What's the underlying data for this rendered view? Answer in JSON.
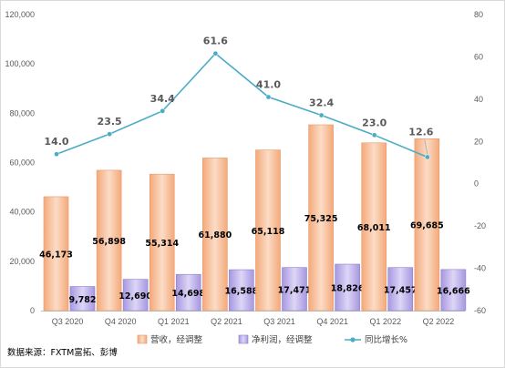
{
  "chart_data": {
    "type": "bar",
    "categories": [
      "Q3 2020",
      "Q4 2020",
      "Q1 2021",
      "Q2 2021",
      "Q3 2021",
      "Q4 2021",
      "Q1 2022",
      "Q2 2022"
    ],
    "series": [
      {
        "name": "营收，经调整",
        "axis": "left",
        "type": "bar",
        "color": "#F4B183",
        "values": [
          46173,
          56898,
          55314,
          61880,
          65118,
          75325,
          68011,
          69685
        ],
        "labels": [
          "46,173",
          "56,898",
          "55,314",
          "61,880",
          "65,118",
          "75,325",
          "68,011",
          "69,685"
        ]
      },
      {
        "name": "净利润，经调整",
        "axis": "left",
        "type": "bar",
        "color": "#B4A7E5",
        "values": [
          9782,
          12690,
          14698,
          16588,
          17471,
          18826,
          17457,
          16666
        ],
        "labels": [
          "9,782",
          "12,690",
          "14,698",
          "16,588",
          "17,471",
          "18,826",
          "17,457",
          "16,666"
        ]
      },
      {
        "name": "同比增长%",
        "axis": "right",
        "type": "line",
        "color": "#4BACC6",
        "values": [
          14.0,
          23.5,
          34.4,
          61.6,
          41.0,
          32.4,
          23.0,
          12.6
        ],
        "labels": [
          "14.0",
          "23.5",
          "34.4",
          "61.6",
          "41.0",
          "32.4",
          "23.0",
          "12.6"
        ]
      }
    ],
    "ylim_left": [
      0,
      120000
    ],
    "yticks_left": [
      "0",
      "20,000",
      "40,000",
      "60,000",
      "80,000",
      "100,000",
      "120,000"
    ],
    "ylim_right": [
      -60,
      80
    ],
    "yticks_right": [
      "-60",
      "-40",
      "-20",
      "0",
      "20",
      "40",
      "60",
      "80"
    ],
    "legend_position": "bottom",
    "grid": false
  },
  "source_note": "数据来源：FXTM富拓、彭博"
}
